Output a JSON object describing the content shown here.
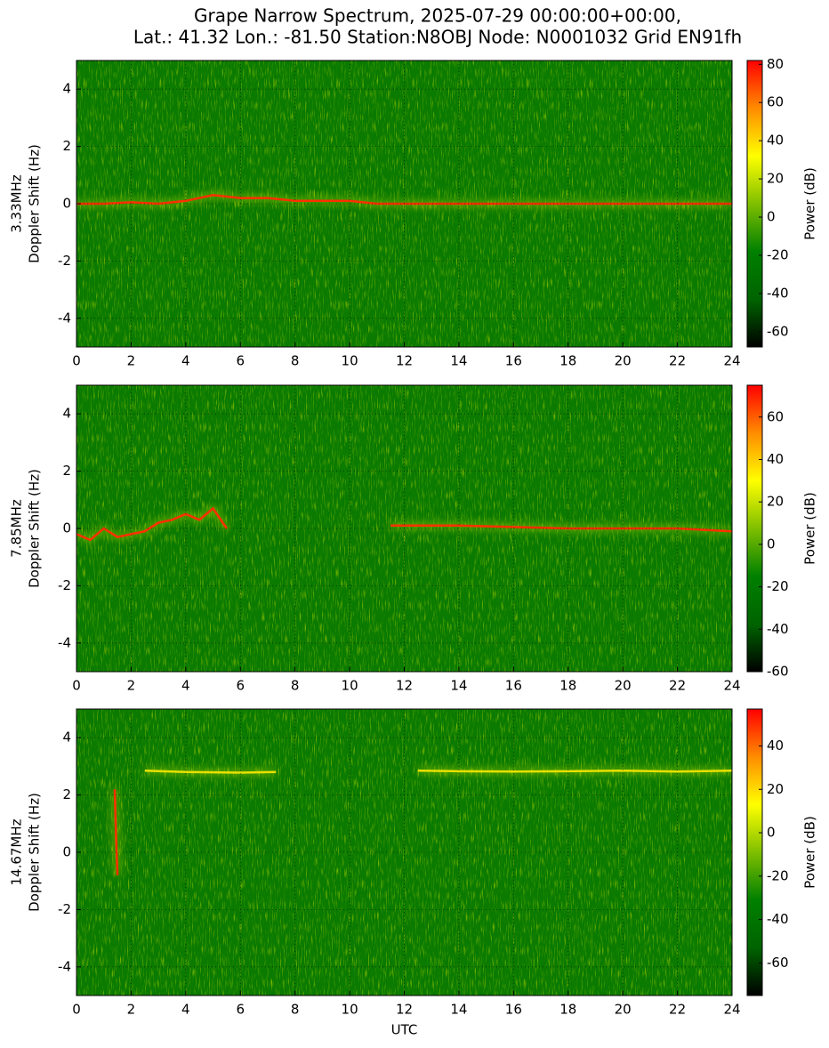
{
  "title": [
    "Grape Narrow Spectrum, 2025-07-29 00:00:00+00:00,",
    "Lat.: 41.32 Lon.: -81.50 Station:N8OBJ Node: N0001032 Grid EN91fh"
  ],
  "colormap": [
    "#000000",
    "#006400",
    "#008000",
    "#7fbf00",
    "#ffff00",
    "#ff8c00",
    "#ff0000"
  ],
  "chart_data": [
    {
      "type": "spectrogram",
      "ylabel": [
        "3.33MHz",
        "Doppler Shift (Hz)"
      ],
      "xlim": [
        0,
        24
      ],
      "xticks": [
        0,
        2,
        4,
        6,
        8,
        10,
        12,
        14,
        16,
        18,
        20,
        22,
        24
      ],
      "ylim": [
        -5,
        5
      ],
      "yticks": [
        -4,
        -2,
        0,
        2,
        4
      ],
      "grid": true,
      "colorbar": {
        "label": "Power (dB)",
        "lim": [
          -68,
          82
        ],
        "ticks": [
          -60,
          -40,
          -20,
          0,
          20,
          40,
          60,
          80
        ]
      },
      "series": [
        {
          "color": "#ff3000",
          "x": [
            0,
            1,
            2,
            3,
            4,
            5,
            6,
            7,
            8,
            9,
            10,
            11,
            12,
            14,
            16,
            18,
            20,
            22,
            24
          ],
          "values": [
            0,
            0,
            0.05,
            0,
            0.1,
            0.3,
            0.2,
            0.2,
            0.1,
            0.1,
            0.1,
            0,
            0,
            0,
            0,
            0,
            0,
            0,
            0
          ]
        }
      ]
    },
    {
      "type": "spectrogram",
      "ylabel": [
        "7.85MHz",
        "Doppler Shift (Hz)"
      ],
      "xlim": [
        0,
        24
      ],
      "xticks": [
        0,
        2,
        4,
        6,
        8,
        10,
        12,
        14,
        16,
        18,
        20,
        22,
        24
      ],
      "ylim": [
        -5,
        5
      ],
      "yticks": [
        -4,
        -2,
        0,
        2,
        4
      ],
      "grid": true,
      "colorbar": {
        "label": "Power (dB)",
        "lim": [
          -60,
          75
        ],
        "ticks": [
          -60,
          -40,
          -20,
          0,
          20,
          40,
          60
        ]
      },
      "series": [
        {
          "color": "#ff3000",
          "x": [
            0,
            0.5,
            1,
            1.5,
            2,
            2.5,
            3,
            3.5,
            4,
            4.5,
            5,
            5.5,
            8,
            11.5,
            12,
            14,
            16,
            18,
            20,
            22,
            24
          ],
          "values": [
            -0.2,
            -0.4,
            0,
            -0.3,
            -0.2,
            -0.1,
            0.2,
            0.3,
            0.5,
            0.3,
            0.7,
            0,
            null,
            0.1,
            0.1,
            0.1,
            0.05,
            0,
            0,
            0,
            -0.1
          ]
        }
      ]
    },
    {
      "type": "spectrogram",
      "ylabel": [
        "14.67MHz",
        "Doppler Shift (Hz)"
      ],
      "xlabel": "UTC",
      "xlim": [
        0,
        24
      ],
      "xticks": [
        0,
        2,
        4,
        6,
        8,
        10,
        12,
        14,
        16,
        18,
        20,
        22,
        24
      ],
      "ylim": [
        -5,
        5
      ],
      "yticks": [
        -4,
        -2,
        0,
        2,
        4
      ],
      "grid": true,
      "colorbar": {
        "label": "Power (dB)",
        "lim": [
          -75,
          57
        ],
        "ticks": [
          -60,
          -40,
          -20,
          0,
          20,
          40
        ]
      },
      "series": [
        {
          "color": "#e8e000",
          "x": [
            2.5,
            4,
            6,
            7.3,
            10,
            12.5,
            14,
            16,
            18,
            20,
            22,
            24
          ],
          "values": [
            2.85,
            2.8,
            2.78,
            2.8,
            null,
            2.85,
            2.83,
            2.82,
            2.83,
            2.85,
            2.82,
            2.85
          ]
        },
        {
          "color": "#ff3000",
          "x": [
            1.4,
            1.45,
            1.5
          ],
          "values": [
            2.2,
            0.5,
            -0.8
          ]
        }
      ]
    }
  ]
}
